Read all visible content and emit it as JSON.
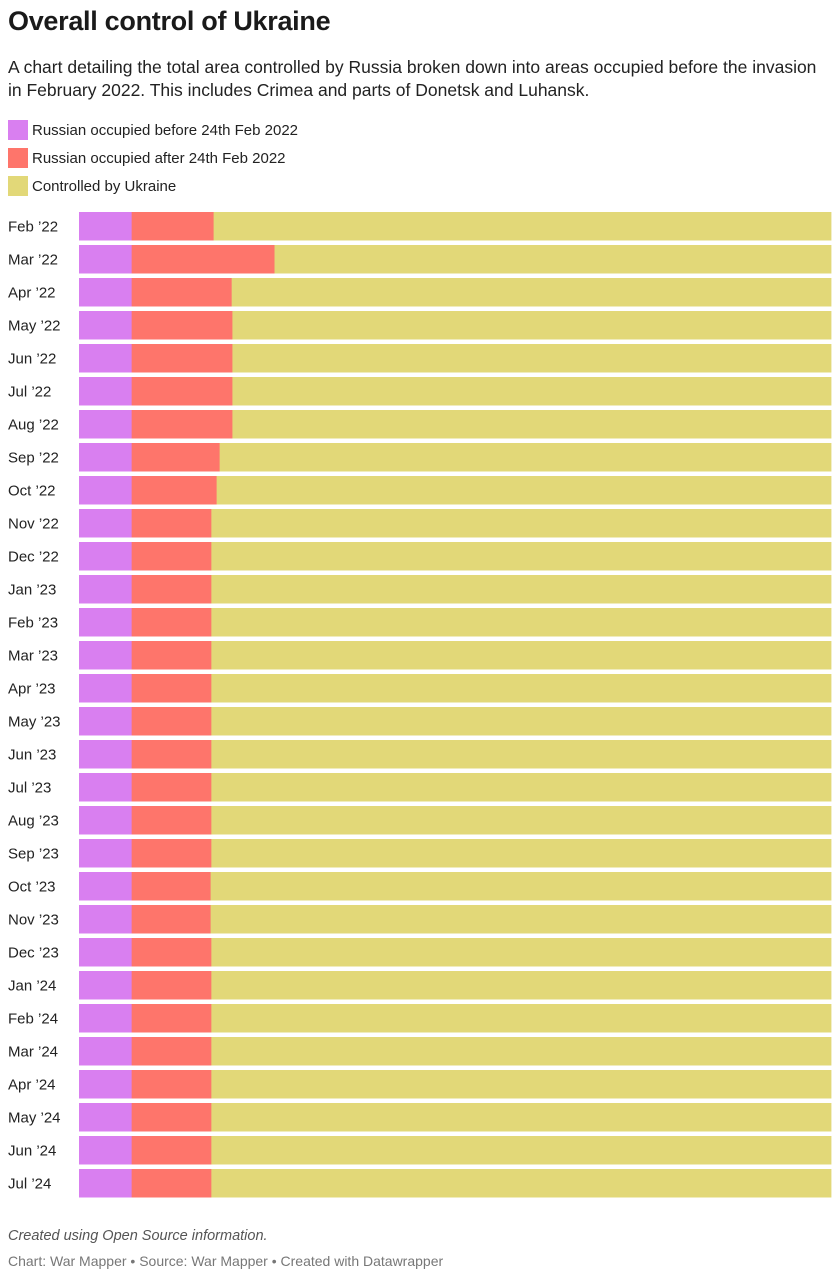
{
  "title": "Overall control of Ukraine",
  "subtitle": "A chart detailing the total area controlled by Russia broken down into areas occupied before the invasion in February 2022. This includes Crimea and parts of Donetsk and Luhansk.",
  "legend": [
    {
      "label": "Russian occupied before 24th Feb 2022",
      "color": "#d97ff0"
    },
    {
      "label": "Russian occupied after 24th Feb 2022",
      "color": "#fe756b"
    },
    {
      "label": "Controlled by Ukraine",
      "color": "#e2d878"
    }
  ],
  "chart_data": {
    "type": "bar",
    "orientation": "horizontal",
    "stacked": true,
    "normalized": true,
    "categories": [
      "Feb ’22",
      "Mar ’22",
      "Apr ’22",
      "May ’22",
      "Jun ’22",
      "Jul ’22",
      "Aug ’22",
      "Sep ’22",
      "Oct ’22",
      "Nov ’22",
      "Dec ’22",
      "Jan ’23",
      "Feb ’23",
      "Mar ’23",
      "Apr ’23",
      "May ’23",
      "Jun ’23",
      "Jul ’23",
      "Aug ’23",
      "Sep ’23",
      "Oct ’23",
      "Nov ’23",
      "Dec ’23",
      "Jan ’24",
      "Feb ’24",
      "Mar ’24",
      "Apr ’24",
      "May ’24",
      "Jun ’24",
      "Jul ’24"
    ],
    "series": [
      {
        "name": "Russian occupied before 24th Feb 2022",
        "color": "#d97ff0",
        "values": [
          7.0,
          7.0,
          7.0,
          7.0,
          7.0,
          7.0,
          7.0,
          7.0,
          7.0,
          7.0,
          7.0,
          7.0,
          7.0,
          7.0,
          7.0,
          7.0,
          7.0,
          7.0,
          7.0,
          7.0,
          7.0,
          7.0,
          7.0,
          7.0,
          7.0,
          7.0,
          7.0,
          7.0,
          7.0,
          7.0
        ]
      },
      {
        "name": "Russian occupied after 24th Feb 2022",
        "color": "#fe756b",
        "values": [
          10.9,
          19.0,
          13.3,
          13.4,
          13.4,
          13.4,
          13.4,
          11.7,
          11.3,
          10.6,
          10.6,
          10.6,
          10.6,
          10.6,
          10.6,
          10.6,
          10.6,
          10.6,
          10.6,
          10.6,
          10.5,
          10.5,
          10.6,
          10.6,
          10.6,
          10.6,
          10.6,
          10.6,
          10.6,
          10.6
        ]
      },
      {
        "name": "Controlled by Ukraine",
        "color": "#e2d878",
        "values": [
          82.1,
          74.0,
          79.7,
          79.6,
          79.6,
          79.6,
          79.6,
          81.3,
          81.7,
          82.4,
          82.4,
          82.4,
          82.4,
          82.4,
          82.4,
          82.4,
          82.4,
          82.4,
          82.4,
          82.4,
          82.5,
          82.5,
          82.4,
          82.4,
          82.4,
          82.4,
          82.4,
          82.4,
          82.4,
          82.4
        ]
      }
    ],
    "xlim": [
      0,
      100
    ],
    "grid": false,
    "legend_position": "top-left"
  },
  "footer": {
    "note": "Created using Open Source information.",
    "credit": "Chart: War Mapper • Source: War Mapper • Created with Datawrapper"
  }
}
